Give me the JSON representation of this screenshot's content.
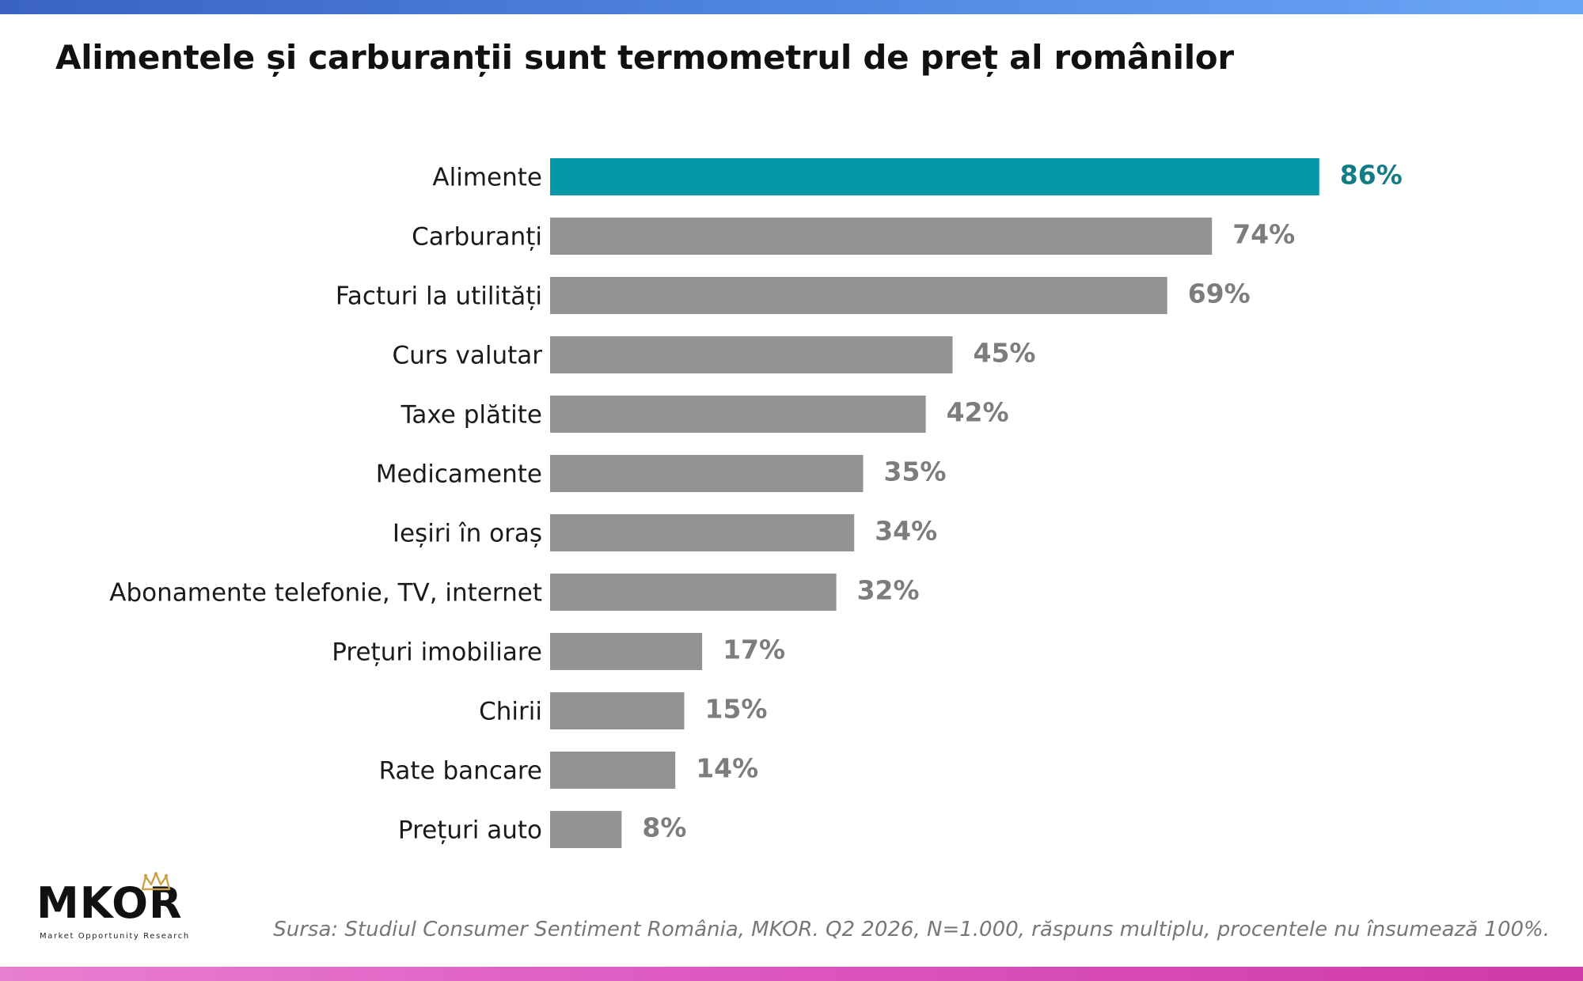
{
  "title": "Alimentele și carburanții sunt termometrul de preț al românilor",
  "colors": {
    "highlight": "#0599a7",
    "highlight_text": "#147c85",
    "bar": "#939393",
    "value_text": "#7d7d7d"
  },
  "chart_data": {
    "type": "bar",
    "orientation": "horizontal",
    "categories": [
      "Alimente",
      "Carburanți",
      "Facturi la utilități",
      "Curs valutar",
      "Taxe plătite",
      "Medicamente",
      "Ieșiri în oraș",
      "Abonamente telefonie, TV, internet",
      "Prețuri imobiliare",
      "Chirii",
      "Rate bancare",
      "Prețuri auto"
    ],
    "values": [
      86,
      74,
      69,
      45,
      42,
      35,
      34,
      32,
      17,
      15,
      14,
      8
    ],
    "value_labels": [
      "86%",
      "74%",
      "69%",
      "45%",
      "42%",
      "35%",
      "34%",
      "32%",
      "17%",
      "15%",
      "14%",
      "8%"
    ],
    "highlighted_category": "Alimente",
    "unit": "%",
    "grid": false,
    "legend": false
  },
  "logo": {
    "name": "MKOR",
    "tagline": "Market Opportunity Research"
  },
  "source": "Sursa: Studiul Consumer Sentiment România, MKOR. Q2 2026, N=1.000, răspuns multiplu, procentele nu însumează 100%."
}
